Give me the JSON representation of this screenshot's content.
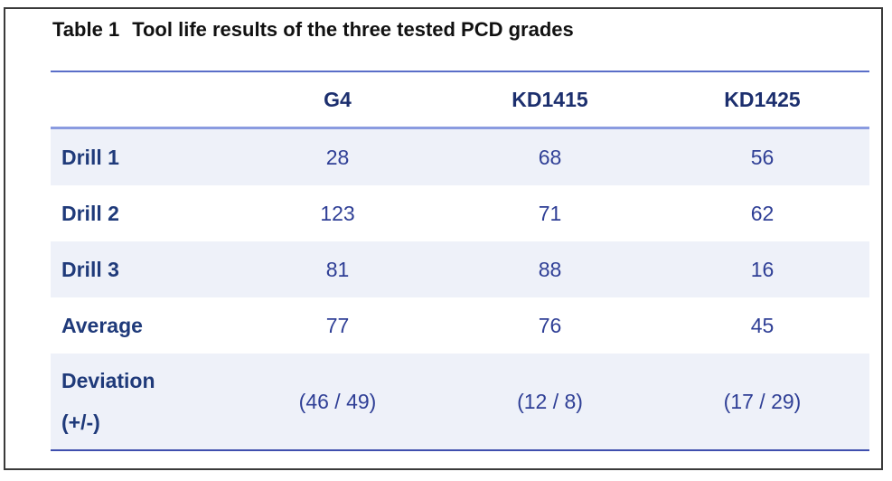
{
  "caption": {
    "number": "Table 1",
    "title": "Tool life results of the three tested PCD grades"
  },
  "table": {
    "columns": [
      "G4",
      "KD1415",
      "KD1425"
    ],
    "rows": [
      {
        "label": "Drill 1",
        "values": [
          "28",
          "68",
          "56"
        ]
      },
      {
        "label": "Drill 2",
        "values": [
          "123",
          "71",
          "62"
        ]
      },
      {
        "label": "Drill 3",
        "values": [
          "81",
          "88",
          "16"
        ]
      },
      {
        "label": "Average",
        "values": [
          "77",
          "76",
          "45"
        ]
      },
      {
        "label_line1": "Deviation",
        "label_line2": "(+/-)",
        "values": [
          "(46 / 49)",
          "(12 / 8)",
          "(17 / 29)"
        ]
      }
    ]
  }
}
